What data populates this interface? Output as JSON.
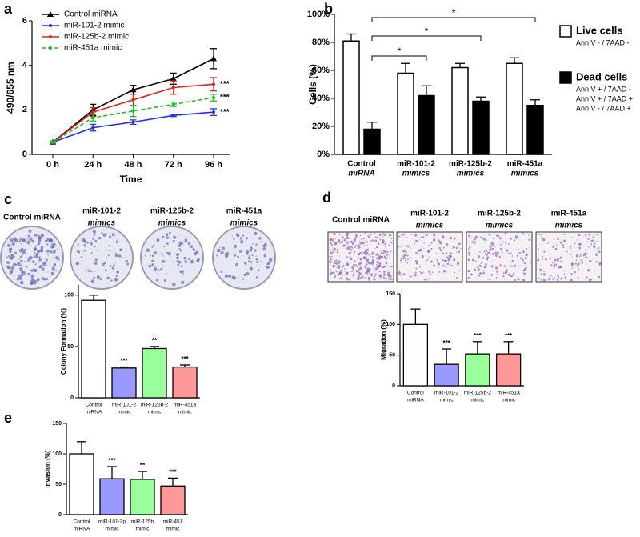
{
  "chart_data": [
    {
      "panel": "a",
      "type": "line",
      "xlabel": "Time",
      "ylabel": "490/655 nm",
      "categories": [
        "0 h",
        "24 h",
        "48 h",
        "72 h",
        "96 h"
      ],
      "ylim": [
        0,
        6
      ],
      "yticks": [
        0,
        2,
        4,
        6
      ],
      "legend": "upper left",
      "series": [
        {
          "name": "Control miRNA",
          "color": "#000000",
          "marker": "triangle",
          "linestyle": "solid",
          "values": [
            0.55,
            2.0,
            2.9,
            3.4,
            4.3
          ],
          "errors": [
            0.05,
            0.25,
            0.2,
            0.25,
            0.45
          ]
        },
        {
          "name": "miR-101-2 mimic",
          "color": "#2233dd",
          "marker": "dot",
          "linestyle": "solid",
          "values": [
            0.55,
            1.2,
            1.45,
            1.75,
            1.9
          ],
          "errors": [
            0.05,
            0.15,
            0.1,
            0.05,
            0.15
          ],
          "annotation": "***"
        },
        {
          "name": "miR-125b-2 mimic",
          "color": "#dd2222",
          "marker": "dot",
          "linestyle": "solid",
          "values": [
            0.55,
            1.9,
            2.45,
            3.0,
            3.15
          ],
          "errors": [
            0.05,
            0.2,
            0.25,
            0.3,
            0.3
          ],
          "annotation": "***"
        },
        {
          "name": "miR-451a mimic",
          "color": "#22bb22",
          "marker": "dot",
          "linestyle": "dashed",
          "values": [
            0.55,
            1.65,
            1.95,
            2.25,
            2.55
          ],
          "errors": [
            0.05,
            0.15,
            0.25,
            0.1,
            0.15
          ],
          "annotation": "***"
        }
      ]
    },
    {
      "panel": "b",
      "type": "grouped_bar",
      "ylabel": "Cells (%)",
      "categories": [
        [
          "Control",
          "miRNA"
        ],
        [
          "miR-101-2",
          "mimics"
        ],
        [
          "miR-125b-2",
          "mimics"
        ],
        [
          "miR-451a",
          "mimics"
        ]
      ],
      "ylim": [
        0,
        100
      ],
      "yticks": [
        {
          "value": 0,
          "label": "0%"
        },
        {
          "value": 20,
          "label": "20%"
        },
        {
          "value": 40,
          "label": "40%"
        },
        {
          "value": 60,
          "label": "60%"
        },
        {
          "value": 80,
          "label": "80%"
        },
        {
          "value": 100,
          "label": "100%"
        }
      ],
      "series": [
        {
          "name": "Live cells",
          "color": "#ffffff",
          "values": [
            81,
            58,
            62,
            65
          ],
          "errors": [
            5,
            7,
            3,
            4
          ],
          "legend_notes": [
            "Ann V -  / 7AAD -"
          ]
        },
        {
          "name": "Dead cells",
          "color": "#000000",
          "values": [
            18,
            42,
            38,
            35
          ],
          "errors": [
            5,
            7,
            3,
            4
          ],
          "legend_notes": [
            "Ann V +  / 7AAD -",
            "Ann V + / 7AAD +",
            "Ann V - / 7AAD +"
          ]
        }
      ],
      "significance": [
        "*",
        "*",
        "*"
      ]
    },
    {
      "panel": "c",
      "type": "bar",
      "ylabel": "Colony Formation (%)",
      "image_labels": [
        [
          "Control miRNA"
        ],
        [
          "miR-101-2",
          "mimics"
        ],
        [
          "miR-125b-2",
          "mimics"
        ],
        [
          "miR-451a",
          "mimics"
        ]
      ],
      "categories": [
        [
          "Control",
          "miRNA"
        ],
        [
          "miR-101-2",
          "mimic"
        ],
        [
          "miR-125b-2",
          "mimic"
        ],
        [
          "miR-451a",
          "mimic"
        ]
      ],
      "ylim": [
        0,
        110
      ],
      "yticks": [
        0,
        50,
        100
      ],
      "values": [
        95,
        29,
        48,
        30
      ],
      "errors": [
        5,
        1,
        2,
        2
      ],
      "colors": [
        "#ffffff",
        "#9999ff",
        "#99ff99",
        "#ff9999"
      ],
      "annotations": [
        null,
        "***",
        "**",
        "***"
      ]
    },
    {
      "panel": "d",
      "type": "bar",
      "ylabel": "Migration (%)",
      "image_labels": [
        [
          "Control miRNA"
        ],
        [
          "miR-101-2",
          "mimics"
        ],
        [
          "miR-125b-2",
          "mimics"
        ],
        [
          "miR-451a",
          "mimics"
        ]
      ],
      "categories": [
        [
          "Control",
          "miRNA"
        ],
        [
          "miR-101-2",
          "mimic"
        ],
        [
          "miR-125b-2",
          "mimic"
        ],
        [
          "miR-451a",
          "mimic"
        ]
      ],
      "ylim": [
        0,
        150
      ],
      "yticks": [
        0,
        50,
        100,
        150
      ],
      "values": [
        100,
        35,
        52,
        52
      ],
      "errors": [
        25,
        25,
        20,
        20
      ],
      "colors": [
        "#ffffff",
        "#9999ff",
        "#99ff99",
        "#ff9999"
      ],
      "annotations": [
        null,
        "***",
        "***",
        "***"
      ]
    },
    {
      "panel": "e",
      "type": "bar",
      "ylabel": "Invasion (%)",
      "categories": [
        [
          "Control",
          "miRNA"
        ],
        [
          "miR-101-3p",
          "mimic"
        ],
        [
          "miR-125b",
          "mimic"
        ],
        [
          "miR-451",
          "mimic"
        ]
      ],
      "ylim": [
        0,
        150
      ],
      "yticks": [
        0,
        50,
        100,
        150
      ],
      "values": [
        100,
        59,
        58,
        47
      ],
      "errors": [
        20,
        20,
        13,
        13
      ],
      "colors": [
        "#ffffff",
        "#9999ff",
        "#99ff99",
        "#ff9999"
      ],
      "annotations": [
        null,
        "***",
        "**",
        "***"
      ]
    }
  ]
}
